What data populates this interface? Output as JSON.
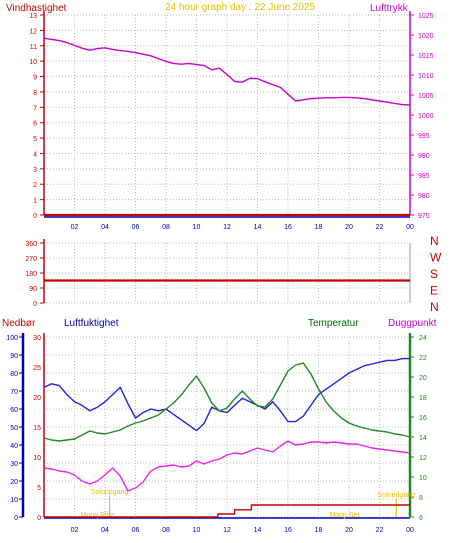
{
  "colors": {
    "wind": "#cc0000",
    "pressure": "#cc00cc",
    "direction": "#cc0000",
    "temperature": "#228822",
    "dewpoint": "#ee22ee",
    "humidity": "#2222dd",
    "rain": "#cc0000",
    "title": "#e0c000",
    "humidity_axis": "#0000aa",
    "grid": "#bbbbbb"
  },
  "chart_data": [
    {
      "type": "line",
      "title": "24 hour graph day : 22 June 2025",
      "left_axis_label": "Vindhastighet",
      "right_axis_label": "Lufttrykk",
      "x_tick_labels": [
        "02",
        "04",
        "06",
        "08",
        "10",
        "12",
        "14",
        "16",
        "18",
        "20",
        "22",
        "00"
      ],
      "x_range_hours": [
        0,
        24
      ],
      "left_ylim": [
        0,
        13
      ],
      "left_ticks": [
        0,
        1,
        2,
        3,
        4,
        5,
        6,
        7,
        8,
        9,
        10,
        11,
        12,
        13
      ],
      "right_ylim": [
        975,
        1025
      ],
      "right_ticks": [
        975,
        980,
        985,
        990,
        995,
        1000,
        1005,
        1010,
        1015,
        1020,
        1025
      ],
      "grid": true,
      "series": [
        {
          "axis": "right",
          "color_key": "pressure",
          "x": [
            0,
            0.5,
            1,
            1.5,
            2,
            2.5,
            3,
            3.5,
            4,
            4.5,
            5,
            5.5,
            6,
            6.5,
            7,
            7.5,
            8,
            8.5,
            9,
            9.5,
            10,
            10.5,
            11,
            11.5,
            12,
            12.5,
            13,
            13.5,
            14,
            14.5,
            15,
            15.5,
            16,
            16.5,
            17,
            17.5,
            18,
            18.5,
            19,
            19.5,
            20,
            20.5,
            21,
            21.5,
            22,
            22.5,
            23,
            23.5,
            24
          ],
          "values": [
            1019.2,
            1018.9,
            1018.6,
            1018.1,
            1017.4,
            1016.7,
            1016.2,
            1016.6,
            1016.8,
            1016.4,
            1016.1,
            1015.9,
            1015.6,
            1015.2,
            1014.8,
            1014.1,
            1013.4,
            1012.9,
            1012.7,
            1012.9,
            1012.6,
            1012.4,
            1011.3,
            1011.7,
            1010.1,
            1008.4,
            1008.2,
            1009.2,
            1009.1,
            1008.3,
            1007.6,
            1006.9,
            1005.2,
            1003.5,
            1003.8,
            1004.1,
            1004.2,
            1004.3,
            1004.3,
            1004.4,
            1004.4,
            1004.3,
            1004.1,
            1003.8,
            1003.5,
            1003.2,
            1002.9,
            1002.6,
            1002.5
          ]
        },
        {
          "axis": "left",
          "color_key": "wind",
          "x": [
            0,
            24
          ],
          "values": [
            0,
            0
          ]
        }
      ]
    },
    {
      "type": "line",
      "left_ylim": [
        0,
        360
      ],
      "left_ticks": [
        0,
        90,
        180,
        270,
        360
      ],
      "right_labels": [
        "N",
        "W",
        "S",
        "E",
        "N"
      ],
      "grid": true,
      "series": [
        {
          "color_key": "direction",
          "x": [
            0,
            24
          ],
          "values": [
            135,
            135
          ]
        }
      ]
    },
    {
      "type": "line",
      "labels": {
        "rain": "Nedbør",
        "humidity": "Luftfuktighet",
        "temperature": "Temperatur",
        "dewpoint": "Duggpunkt"
      },
      "x_tick_labels": [
        "02",
        "04",
        "06",
        "08",
        "10",
        "12",
        "14",
        "16",
        "18",
        "20",
        "22",
        "00"
      ],
      "x_range_hours": [
        0,
        24
      ],
      "humidity_ticks": [
        0,
        10,
        20,
        30,
        40,
        50,
        60,
        70,
        80,
        90,
        100
      ],
      "humidity_ylim": [
        0,
        100
      ],
      "rain_ticks": [
        0,
        5,
        10,
        15,
        20,
        25,
        30
      ],
      "rain_ylim": [
        0,
        30
      ],
      "temp_ticks": [
        6,
        8,
        10,
        12,
        14,
        16,
        18,
        20,
        22,
        24
      ],
      "temp_ylim": [
        6,
        24
      ],
      "annotations": [
        {
          "text": "Soloppgang",
          "hour": 4.3
        },
        {
          "text": "Moon Rise",
          "hour": 3.5
        },
        {
          "text": "Moon Set",
          "hour": 19.7
        },
        {
          "text": "Solnedgang",
          "hour": 23.1
        }
      ],
      "grid": true,
      "series": [
        {
          "name": "Luftfuktighet",
          "axis": "humidity",
          "color_key": "humidity",
          "x": [
            0,
            0.5,
            1,
            1.5,
            2,
            2.5,
            3,
            3.5,
            4,
            4.5,
            5,
            5.5,
            6,
            6.5,
            7,
            7.5,
            8,
            8.5,
            9,
            9.5,
            10,
            10.5,
            11,
            11.5,
            12,
            12.5,
            13,
            13.5,
            14,
            14.5,
            15,
            15.5,
            16,
            16.5,
            17,
            17.5,
            18,
            18.5,
            19,
            19.5,
            20,
            20.5,
            21,
            21.5,
            22,
            22.5,
            23,
            23.5,
            24
          ],
          "values": [
            72,
            74,
            73,
            68,
            64,
            62,
            59,
            61,
            64,
            68,
            72,
            63,
            55,
            58,
            60,
            59,
            60,
            57,
            54,
            51,
            48,
            52,
            61,
            59,
            58,
            62,
            66,
            64,
            62,
            60,
            64,
            59,
            53,
            53,
            56,
            62,
            68,
            71,
            74,
            77,
            80,
            82,
            84,
            85,
            86,
            87,
            87,
            88,
            88
          ]
        },
        {
          "name": "Temperatur",
          "axis": "temp",
          "color_key": "temperature",
          "x": [
            0,
            0.5,
            1,
            1.5,
            2,
            2.5,
            3,
            3.5,
            4,
            4.5,
            5,
            5.5,
            6,
            6.5,
            7,
            7.5,
            8,
            8.5,
            9,
            9.5,
            10,
            10.5,
            11,
            11.5,
            12,
            12.5,
            13,
            13.5,
            14,
            14.5,
            15,
            15.5,
            16,
            16.5,
            17,
            17.5,
            18,
            18.5,
            19,
            19.5,
            20,
            20.5,
            21,
            21.5,
            22,
            22.5,
            23,
            23.5,
            24
          ],
          "values": [
            13.9,
            13.7,
            13.6,
            13.7,
            13.8,
            14.2,
            14.6,
            14.4,
            14.3,
            14.5,
            14.7,
            15.1,
            15.4,
            15.6,
            15.9,
            16.2,
            16.8,
            17.4,
            18.2,
            19.2,
            20.1,
            18.9,
            17.4,
            16.6,
            16.9,
            17.8,
            18.6,
            17.8,
            17.1,
            17.0,
            17.8,
            19.2,
            20.6,
            21.2,
            21.4,
            20.3,
            18.8,
            17.5,
            16.6,
            15.9,
            15.4,
            15.1,
            14.9,
            14.7,
            14.6,
            14.5,
            14.3,
            14.2,
            14.0
          ]
        },
        {
          "name": "Duggpunkt",
          "axis": "temp",
          "color_key": "dewpoint",
          "x": [
            0,
            0.5,
            1,
            1.5,
            2,
            2.5,
            3,
            3.5,
            4,
            4.5,
            5,
            5.5,
            6,
            6.5,
            7,
            7.5,
            8,
            8.5,
            9,
            9.5,
            10,
            10.5,
            11,
            11.5,
            12,
            12.5,
            13,
            13.5,
            14,
            14.5,
            15,
            15.5,
            16,
            16.5,
            17,
            17.5,
            18,
            18.5,
            19,
            19.5,
            20,
            20.5,
            21,
            21.5,
            22,
            22.5,
            23,
            23.5,
            24
          ],
          "values": [
            10.9,
            10.8,
            10.6,
            10.5,
            10.2,
            9.6,
            9.3,
            9.6,
            10.2,
            10.9,
            10.1,
            8.6,
            8.9,
            9.5,
            10.6,
            11.0,
            11.1,
            11.2,
            11.0,
            11.1,
            11.6,
            11.3,
            11.6,
            11.8,
            12.2,
            12.4,
            12.3,
            12.6,
            12.9,
            12.7,
            12.5,
            13.1,
            13.6,
            13.2,
            13.3,
            13.5,
            13.5,
            13.4,
            13.5,
            13.4,
            13.3,
            13.3,
            13.1,
            12.9,
            12.8,
            12.7,
            12.6,
            12.5,
            12.4
          ]
        },
        {
          "name": "Nedbør",
          "axis": "rain",
          "color_key": "rain",
          "x": [
            0,
            11.4,
            11.4,
            12.5,
            12.5,
            13.6,
            13.6,
            24
          ],
          "values": [
            0,
            0,
            0.5,
            0.5,
            1.2,
            1.2,
            2.0,
            2.0
          ]
        }
      ]
    }
  ]
}
